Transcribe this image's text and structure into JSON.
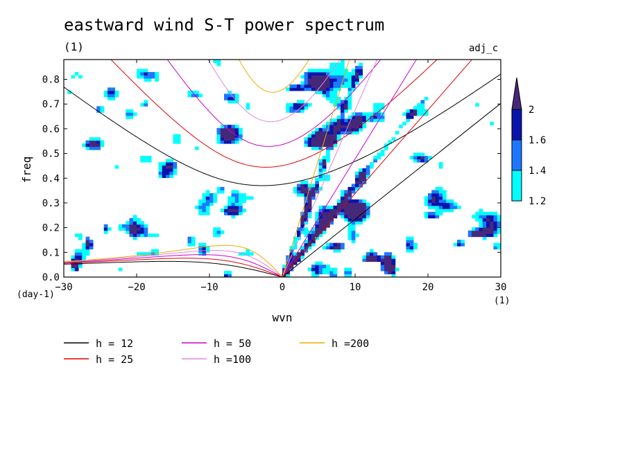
{
  "chart_data": {
    "type": "heatmap",
    "title": "eastward wind S-T power spectrum",
    "subtitle": "(1)",
    "label_right": "adj_c",
    "xlabel": "wvn",
    "ylabel": "freq",
    "x_unit": "(1)",
    "y_unit": "(day-1)",
    "xlim": [
      -30,
      30
    ],
    "ylim": [
      0,
      0.88
    ],
    "x_ticks": [
      -30,
      -20,
      -10,
      0,
      10,
      20,
      30
    ],
    "y_ticks": [
      0.0,
      0.1,
      0.2,
      0.3,
      0.4,
      0.5,
      0.6,
      0.7,
      0.8
    ],
    "x_tick_labels": [
      "−30",
      "−20",
      "−10",
      "0",
      "10",
      "20",
      "30"
    ],
    "y_tick_labels": [
      "0.0",
      "0.1",
      "0.2",
      "0.3",
      "0.4",
      "0.5",
      "0.6",
      "0.7",
      "0.8"
    ],
    "colorbar": {
      "levels": [
        1.2,
        1.4,
        1.6,
        2
      ],
      "labels": [
        "1.2",
        "1.4",
        "1.6",
        "2"
      ],
      "colors": [
        "#00ffff",
        "#1e78ff",
        "#0a14aa",
        "#46287a"
      ]
    },
    "series": [
      {
        "name": "h = 12",
        "equivalent_depth": 12,
        "color": "#000000"
      },
      {
        "name": "h = 25",
        "equivalent_depth": 25,
        "color": "#dd0000"
      },
      {
        "name": "h = 50",
        "equivalent_depth": 50,
        "color": "#cc00cc"
      },
      {
        "name": "h =100",
        "equivalent_depth": 100,
        "color": "#dd88dd"
      },
      {
        "name": "h =200",
        "equivalent_depth": 200,
        "color": "#eeaa00"
      }
    ]
  }
}
